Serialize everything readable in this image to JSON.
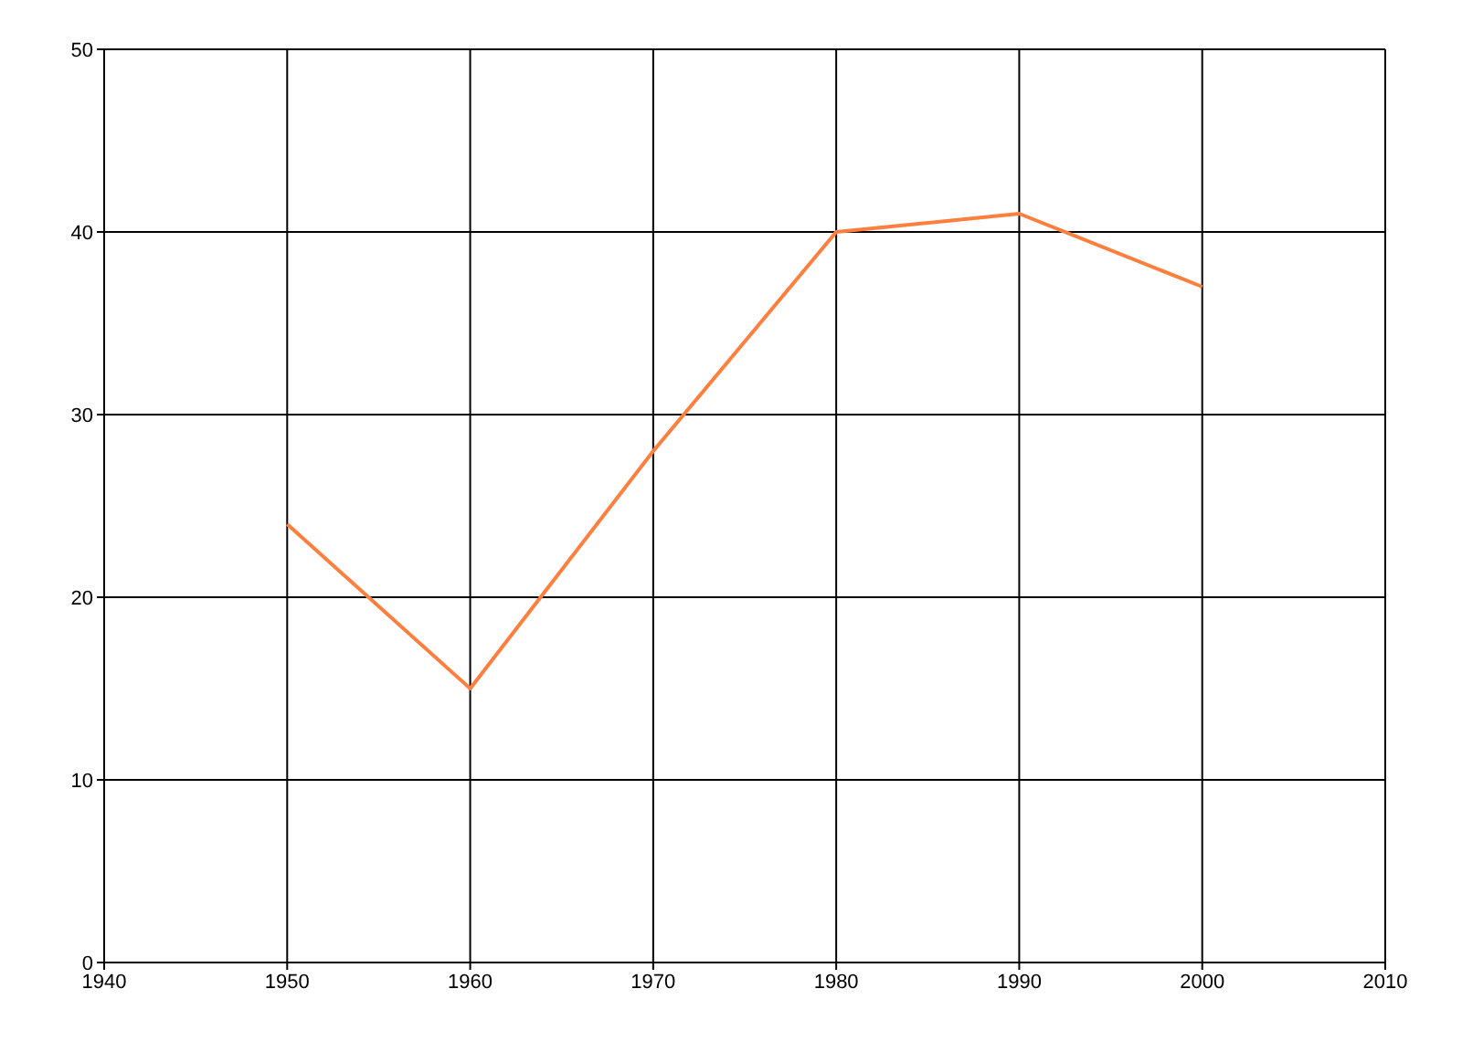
{
  "chart_data": {
    "type": "line",
    "x": [
      1950,
      1960,
      1970,
      1980,
      1990,
      2000
    ],
    "series": [
      {
        "color": "#ff7f3f",
        "values": [
          24,
          15,
          28,
          40,
          41,
          37
        ]
      }
    ],
    "xlim": [
      1940,
      2010
    ],
    "xticks": [
      1940,
      1950,
      1960,
      1970,
      1980,
      1990,
      2000,
      2010
    ],
    "ylim": [
      0,
      50
    ],
    "yticks": [
      0,
      10,
      20,
      30,
      40,
      50
    ],
    "grid": true,
    "marker": "none",
    "line_style": "solid"
  }
}
